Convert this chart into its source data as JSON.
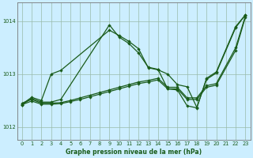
{
  "title": "Graphe pression niveau de la mer (hPa)",
  "background_color": "#cceeff",
  "grid_color": "#aaccaa",
  "line_color": "#1a5c1a",
  "xlim": [
    -0.5,
    23.5
  ],
  "ylim": [
    1011.75,
    1014.35
  ],
  "xticks": [
    0,
    1,
    2,
    3,
    4,
    5,
    6,
    7,
    8,
    9,
    10,
    11,
    12,
    13,
    14,
    15,
    16,
    17,
    18,
    19,
    20,
    21,
    22,
    23
  ],
  "yticks": [
    1012,
    1013,
    1014
  ],
  "s1x": [
    0,
    1,
    2,
    3,
    4,
    5,
    6,
    7,
    8,
    9,
    10,
    11,
    12,
    13,
    14,
    15,
    16,
    17,
    18,
    19,
    20,
    22,
    23
  ],
  "s1y": [
    1012.45,
    1012.52,
    1012.45,
    1012.45,
    1012.46,
    1012.5,
    1012.55,
    1012.6,
    1012.65,
    1012.7,
    1012.75,
    1012.8,
    1012.85,
    1012.88,
    1012.92,
    1012.75,
    1012.75,
    1012.55,
    1012.55,
    1012.78,
    1012.82,
    1013.5,
    1014.1
  ],
  "s2x": [
    0,
    1,
    2,
    3,
    4,
    5,
    6,
    7,
    8,
    9,
    10,
    11,
    12,
    13,
    14,
    15,
    16,
    17,
    18,
    19,
    20,
    22,
    23
  ],
  "s2y": [
    1012.42,
    1012.49,
    1012.43,
    1012.43,
    1012.44,
    1012.48,
    1012.52,
    1012.57,
    1012.62,
    1012.67,
    1012.72,
    1012.77,
    1012.82,
    1012.85,
    1012.89,
    1012.72,
    1012.72,
    1012.52,
    1012.52,
    1012.75,
    1012.79,
    1013.45,
    1014.08
  ],
  "s3x": [
    0,
    1,
    2,
    3,
    4,
    9,
    10,
    11,
    12,
    13,
    14,
    15,
    16,
    17,
    18,
    19,
    20,
    22,
    23
  ],
  "s3y": [
    1012.43,
    1012.56,
    1012.5,
    1013.0,
    1013.07,
    1013.83,
    1013.73,
    1013.62,
    1013.48,
    1013.12,
    1013.08,
    1013.0,
    1012.8,
    1012.76,
    1012.37,
    1012.9,
    1013.02,
    1013.88,
    1014.12
  ],
  "s4x": [
    0,
    1,
    2,
    3,
    4,
    9,
    10,
    11,
    12,
    13,
    14,
    15,
    16,
    17,
    18,
    19,
    20,
    22,
    23
  ],
  "s4y": [
    1012.42,
    1012.54,
    1012.47,
    1012.47,
    1012.52,
    1013.93,
    1013.7,
    1013.58,
    1013.4,
    1013.13,
    1013.09,
    1012.72,
    1012.7,
    1012.4,
    1012.36,
    1012.92,
    1013.04,
    1013.9,
    1014.12
  ]
}
